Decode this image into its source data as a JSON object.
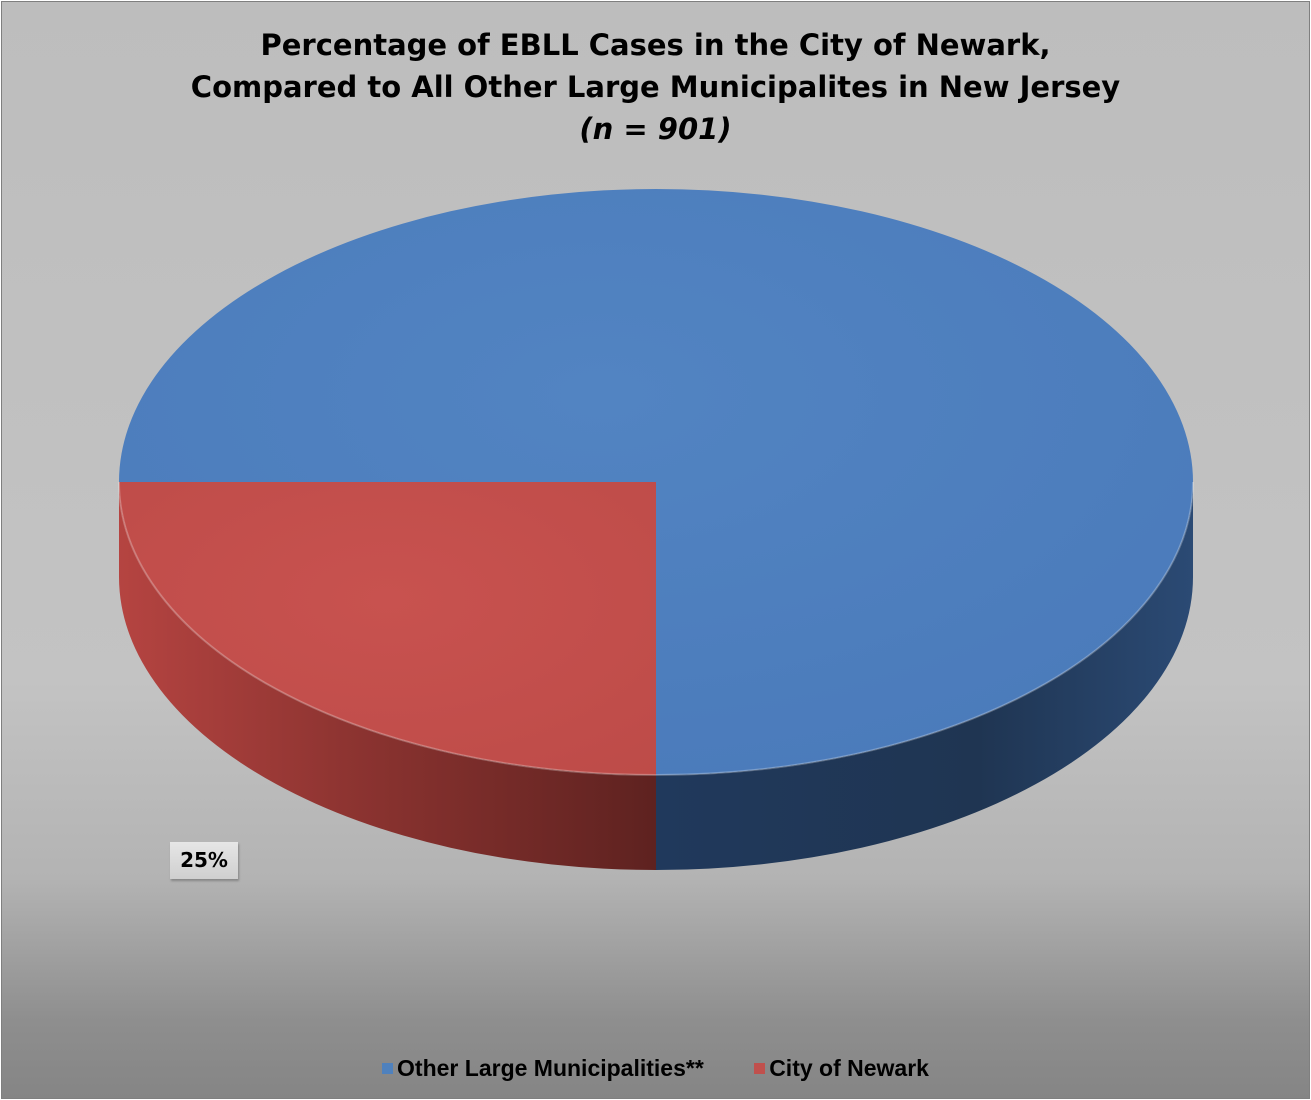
{
  "chart_data": {
    "type": "pie",
    "title": [
      "Percentage of EBLL Cases in the City of Newark,",
      "Compared to All Other Large Municipalites in New Jersey"
    ],
    "subtitle": "(n = 901)",
    "slices": [
      {
        "name": "Other Large Municipalities**",
        "value": 75,
        "color": "#4f81bd"
      },
      {
        "name": "City of Newark",
        "value": 25,
        "color": "#c0504d",
        "label": "25%"
      }
    ],
    "legend": [
      "Other Large Municipalities**",
      "City of Newark"
    ],
    "legend_position": "bottom",
    "style": "3d"
  }
}
